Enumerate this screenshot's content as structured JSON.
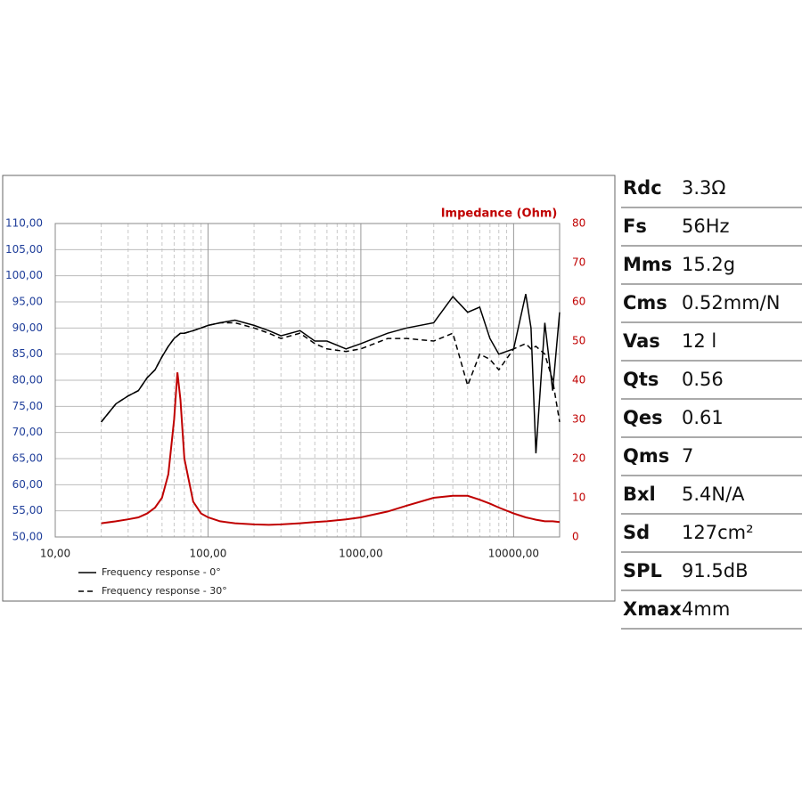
{
  "chart_data": {
    "type": "line",
    "x_scale": "log",
    "y2_label": "Impedance (Ohm)",
    "x": [
      20,
      25,
      30,
      35,
      40,
      45,
      50,
      55,
      60,
      63,
      66,
      70,
      80,
      90,
      100,
      120,
      150,
      200,
      250,
      300,
      400,
      500,
      600,
      800,
      1000,
      1500,
      2000,
      3000,
      4000,
      5000,
      6000,
      7000,
      8000,
      10000,
      12000,
      13000,
      14000,
      16000,
      18000,
      20000
    ],
    "series": [
      {
        "name": "Frequency response - 0°",
        "color": "#000000",
        "dash": false,
        "values": [
          72,
          75.5,
          77,
          78,
          80.5,
          82,
          84.5,
          86.5,
          88,
          88.5,
          89,
          89,
          89.5,
          90,
          90.5,
          91,
          91.5,
          90.5,
          89.5,
          88.5,
          89.5,
          87.5,
          87.5,
          86,
          87,
          89,
          90,
          91,
          96,
          93,
          94,
          88,
          85,
          86,
          96.5,
          90,
          66,
          91,
          78,
          93
        ]
      },
      {
        "name": "Frequency response - 30°",
        "color": "#000000",
        "dash": true,
        "values": [
          72,
          75.5,
          77,
          78,
          80.5,
          82,
          84.5,
          86.5,
          88,
          88.5,
          89,
          89,
          89.5,
          90,
          90.5,
          91,
          91,
          90,
          89,
          88,
          89,
          87,
          86,
          85.5,
          86,
          88,
          88,
          87.5,
          89,
          79,
          85,
          84,
          82,
          86,
          87,
          86,
          86.5,
          85,
          80,
          72
        ]
      },
      {
        "color": "#c00000",
        "dash": false,
        "axis": "y2",
        "values": [
          3.5,
          4,
          4.5,
          5,
          6,
          7.5,
          10,
          16,
          30,
          42,
          35,
          20,
          9,
          6,
          5,
          4,
          3.5,
          3.2,
          3.1,
          3.2,
          3.5,
          3.8,
          4,
          4.5,
          5,
          6.5,
          8,
          10,
          10.5,
          10.5,
          9.5,
          8.5,
          7.5,
          6,
          5,
          4.7,
          4.4,
          4,
          4,
          3.8
        ]
      }
    ],
    "xlim": [
      10,
      20000
    ],
    "xticks": [
      {
        "value": 10,
        "label": "10,00"
      },
      {
        "value": 100,
        "label": "100,00"
      },
      {
        "value": 1000,
        "label": "1000,00"
      },
      {
        "value": 10000,
        "label": "10000,00"
      }
    ],
    "xminor": [
      20,
      30,
      40,
      50,
      60,
      70,
      80,
      90,
      200,
      300,
      400,
      500,
      600,
      700,
      800,
      900,
      2000,
      3000,
      4000,
      5000,
      6000,
      7000,
      8000,
      9000
    ],
    "ylim": [
      50,
      110
    ],
    "yticks": [
      {
        "value": 50,
        "label": "50,00"
      },
      {
        "value": 55,
        "label": "55,00"
      },
      {
        "value": 60,
        "label": "60,00"
      },
      {
        "value": 65,
        "label": "65,00"
      },
      {
        "value": 70,
        "label": "70,00"
      },
      {
        "value": 75,
        "label": "75,00"
      },
      {
        "value": 80,
        "label": "80,00"
      },
      {
        "value": 85,
        "label": "85,00"
      },
      {
        "value": 90,
        "label": "90,00"
      },
      {
        "value": 95,
        "label": "95,00"
      },
      {
        "value": 100,
        "label": "100,00"
      },
      {
        "value": 105,
        "label": "105,00"
      },
      {
        "value": 110,
        "label": "110,00"
      }
    ],
    "y2lim": [
      0,
      80
    ],
    "y2ticks": [
      0,
      10,
      20,
      30,
      40,
      50,
      60,
      70,
      80
    ],
    "grid": true,
    "legend": "bottom-left"
  },
  "specs": {
    "rows": [
      {
        "label": "Rdc",
        "value": "3.3Ω"
      },
      {
        "label": "Fs",
        "value": "56Hz"
      },
      {
        "label": "Mms",
        "value": "15.2g"
      },
      {
        "label": "Cms",
        "value": "0.52mm/N"
      },
      {
        "label": "Vas",
        "value": "12 l"
      },
      {
        "label": "Qts",
        "value": "0.56"
      },
      {
        "label": "Qes",
        "value": "0.61"
      },
      {
        "label": "Qms",
        "value": "7"
      },
      {
        "label": "Bxl",
        "value": "5.4N/A"
      },
      {
        "label": "Sd",
        "value": "127cm²"
      },
      {
        "label": "SPL",
        "value": "91.5dB"
      },
      {
        "label": "Xmax",
        "value": "4mm"
      }
    ]
  }
}
